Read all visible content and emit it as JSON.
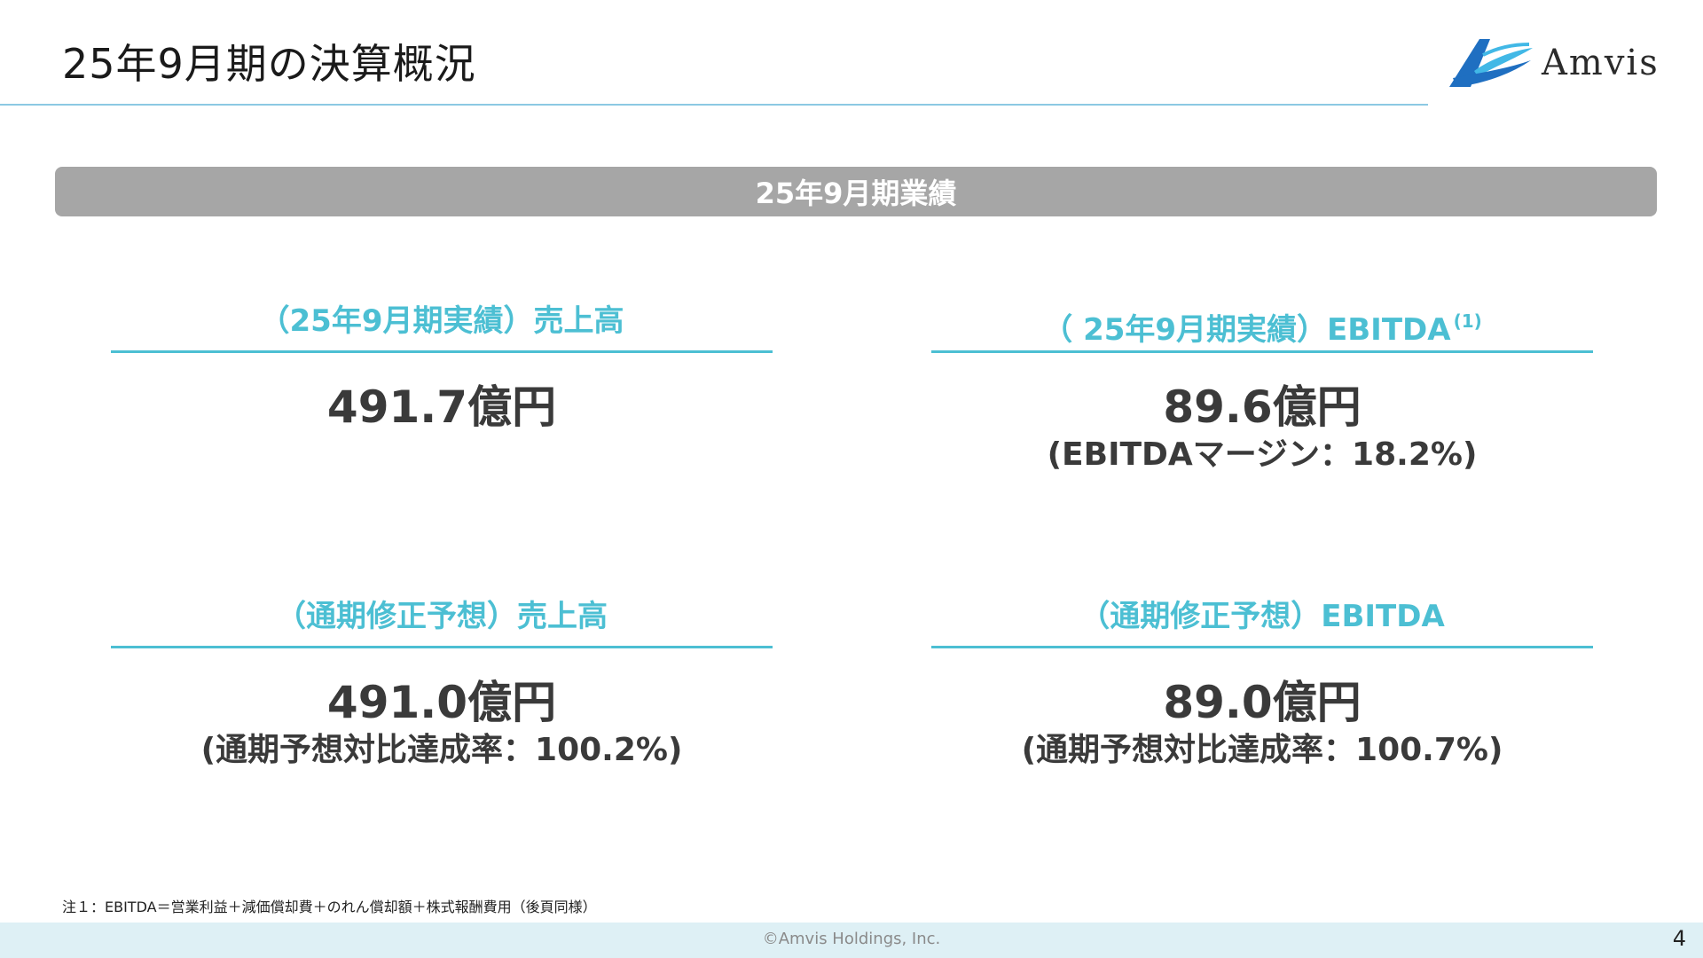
{
  "header": {
    "title": "25年9月期の決算概況",
    "logo_text": "Amvis"
  },
  "banner": {
    "label": "25年9月期業績"
  },
  "cards": [
    {
      "heading": "（25年9月期実績）売上高",
      "value": "491.7億円",
      "sub": ""
    },
    {
      "heading": "（ 25年9月期実績）EBITDA",
      "heading_sup": "(1)",
      "value": "89.6億円",
      "sub": "(EBITDAマージン：18.2%)"
    },
    {
      "heading": "（通期修正予想）売上高",
      "value": "491.0億円",
      "sub": "(通期予想対比達成率：100.2%)"
    },
    {
      "heading": "（通期修正予想）EBITDA",
      "value": "89.0億円",
      "sub": "(通期予想対比達成率：100.7%)"
    }
  ],
  "footnote": "注１：EBITDA＝営業利益＋減価償却費＋のれん償却額＋株式報酬費用（後頁同様）",
  "footer": {
    "copyright": "©Amvis Holdings, Inc.",
    "page_number": "4"
  },
  "colors": {
    "accent": "#4cbfd3",
    "banner": "#a6a6a6",
    "rule": "#8cc9e3",
    "footer_bg": "#def0f5",
    "logo_blue": "#1f6fc1",
    "logo_light": "#41b8e6"
  }
}
